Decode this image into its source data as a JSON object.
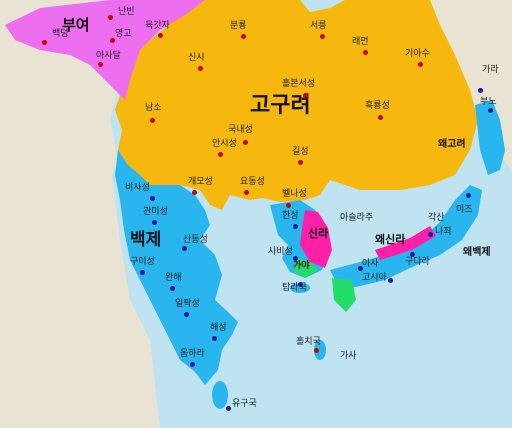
{
  "colors": {
    "sea": "#bfe3f1",
    "land": "#e9e3d3",
    "goguryeo": "#f6b80e",
    "baekje": "#29b6ef",
    "buyeo": "#ee6ef0",
    "silla": "#ff1fa8",
    "gaya": "#22dd66",
    "dot_red": "#cc0000",
    "dot_blue": "#1a1aa0"
  },
  "states": {
    "goguryeo": "고구려",
    "baekje": "백제",
    "buyeo": "부여",
    "silla": "신라",
    "gaya": "가야",
    "wae_silla": "왜신라",
    "wae_goguryeo": "왜고려",
    "wae_baekje": "왜백제"
  },
  "places": {
    "nanbin": "난빈",
    "yeongangja": "육갓자",
    "baekdeung": "백덩",
    "yeonggo": "영고",
    "asadeul": "아사달",
    "bunryong": "분룡",
    "seoreung": "서릉",
    "rameon": "래먼",
    "giasu": "기아수",
    "sinsi": "신시",
    "holbonseong": "홀본서성",
    "namso": "남소",
    "heukryongseong": "흑룡성",
    "gungnaeseong": "국내성",
    "gara": "가라",
    "buno": "부노",
    "ansiseong": "안시성",
    "gilseong": "길성",
    "gaemoseong": "개모성",
    "yodongseong": "요동성",
    "biryuseong": "비사성",
    "gwanmiseong": "관미성",
    "baeknaseong": "벨나성",
    "hanseong": "한성",
    "asullaju": "아슬라주",
    "gakan": "각산",
    "mijeu": "미즈",
    "sandongseong": "산동성",
    "sabiseong": "사비성",
    "najoe": "나죄",
    "gudara": "구다라",
    "guiseong": "구이성",
    "wanhae": "완해",
    "tamna": "탐라국",
    "asa": "아사",
    "koshi": "고시아",
    "ilpaseong": "일팍성",
    "haeseong": "해성",
    "omhara": "옴하라",
    "holchiguk": "홀치국",
    "gasa": "가사",
    "yugugu": "유구국"
  }
}
